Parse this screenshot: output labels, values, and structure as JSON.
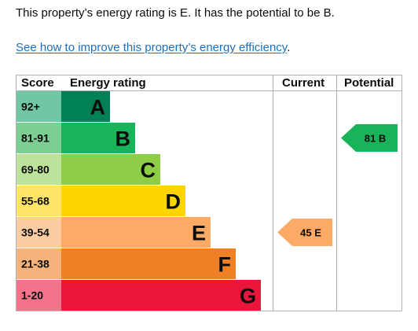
{
  "intro_text": "This property’s energy rating is E. It has the potential to be B.",
  "improve_link": "See how to improve this property’s energy efficiency",
  "improve_link_suffix": ".",
  "table": {
    "header_score": "Score",
    "header_rating": "Energy rating",
    "header_current": "Current",
    "header_potential": "Potential"
  },
  "bands": [
    {
      "score": "92+",
      "letter": "A",
      "color": "#008054",
      "score_bg": "#6fc7a3"
    },
    {
      "score": "81-91",
      "letter": "B",
      "color": "#19b459",
      "score_bg": "#7ccf93"
    },
    {
      "score": "69-80",
      "letter": "C",
      "color": "#8dce46",
      "score_bg": "#bde39a"
    },
    {
      "score": "55-68",
      "letter": "D",
      "color": "#ffd500",
      "score_bg": "#ffe566"
    },
    {
      "score": "39-54",
      "letter": "E",
      "color": "#fcaa65",
      "score_bg": "#fdcca3"
    },
    {
      "score": "21-38",
      "letter": "F",
      "color": "#ef8023",
      "score_bg": "#f5b37b"
    },
    {
      "score": "1-20",
      "letter": "G",
      "color": "#e9153b",
      "score_bg": "#f2738a"
    }
  ],
  "current": {
    "value": "45",
    "letter": "E",
    "label": "45 E",
    "color": "#fcaa65",
    "text_color": "#0b0c0c"
  },
  "potential": {
    "value": "81",
    "letter": "B",
    "label": "81 B",
    "color": "#19b459",
    "text_color": "#0b0c0c"
  }
}
